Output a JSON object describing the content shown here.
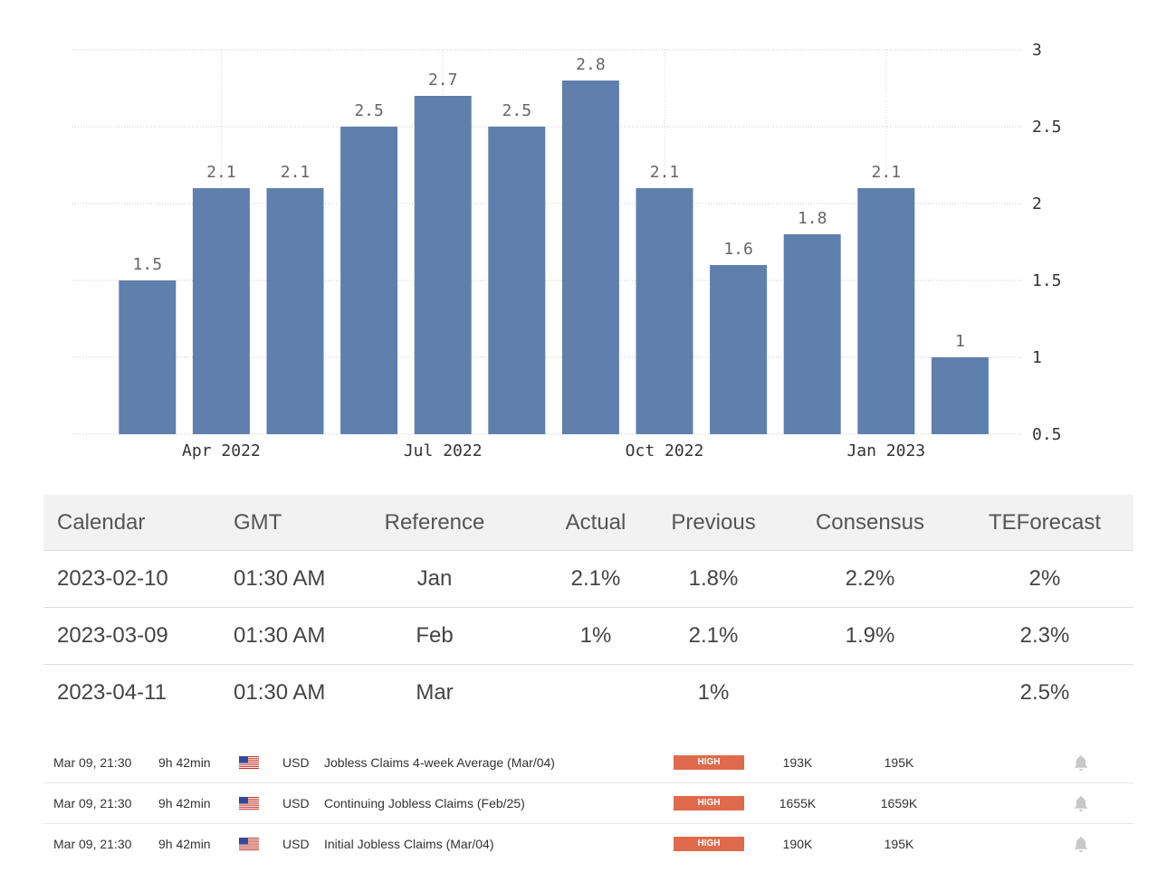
{
  "chart_data": {
    "type": "bar",
    "bars": [
      {
        "label": "1.5",
        "value": 1.5
      },
      {
        "label": "2.1",
        "value": 2.1
      },
      {
        "label": "2.1",
        "value": 2.1
      },
      {
        "label": "2.5",
        "value": 2.5
      },
      {
        "label": "2.7",
        "value": 2.7
      },
      {
        "label": "2.5",
        "value": 2.5
      },
      {
        "label": "2.8",
        "value": 2.8
      },
      {
        "label": "2.1",
        "value": 2.1
      },
      {
        "label": "1.6",
        "value": 1.6
      },
      {
        "label": "1.8",
        "value": 1.8
      },
      {
        "label": "2.1",
        "value": 2.1
      },
      {
        "label": "1",
        "value": 1.0
      }
    ],
    "x_tick_labels": [
      {
        "label": "Apr 2022",
        "bar_index": 1
      },
      {
        "label": "Jul 2022",
        "bar_index": 4
      },
      {
        "label": "Oct 2022",
        "bar_index": 7
      },
      {
        "label": "Jan 2023",
        "bar_index": 10
      }
    ],
    "y_ticks": [
      "0.5",
      "1",
      "1.5",
      "2",
      "2.5",
      "3"
    ],
    "ylim": [
      0.5,
      3
    ],
    "y_axis_side": "right",
    "grid": "horizontal dotted",
    "bar_color": "#5f7fad",
    "title": "",
    "xlabel": "",
    "ylabel": ""
  },
  "calendar": {
    "headers": {
      "calendar": "Calendar",
      "gmt": "GMT",
      "reference": "Reference",
      "actual": "Actual",
      "previous": "Previous",
      "consensus": "Consensus",
      "teforecast": "TEForecast"
    },
    "rows": [
      {
        "date": "2023-02-10",
        "gmt": "01:30 AM",
        "reference": "Jan",
        "actual": "2.1%",
        "previous": "1.8%",
        "consensus": "2.2%",
        "teforecast": "2%"
      },
      {
        "date": "2023-03-09",
        "gmt": "01:30 AM",
        "reference": "Feb",
        "actual": "1%",
        "previous": "2.1%",
        "consensus": "1.9%",
        "teforecast": "2.3%"
      },
      {
        "date": "2023-04-11",
        "gmt": "01:30 AM",
        "reference": "Mar",
        "actual": "",
        "previous": "1%",
        "consensus": "",
        "teforecast": "2.5%"
      }
    ]
  },
  "events": [
    {
      "datetime": "Mar 09, 21:30",
      "countdown": "9h 42min",
      "flag_icon": "us-flag-icon",
      "currency": "USD",
      "title": "Jobless Claims 4-week Average (Mar/04)",
      "importance": "HIGH",
      "value_a": "193K",
      "value_b": "195K",
      "bell_icon": "bell-icon"
    },
    {
      "datetime": "Mar 09, 21:30",
      "countdown": "9h 42min",
      "flag_icon": "us-flag-icon",
      "currency": "USD",
      "title": "Continuing Jobless Claims (Feb/25)",
      "importance": "HIGH",
      "value_a": "1655K",
      "value_b": "1659K",
      "bell_icon": "bell-icon"
    },
    {
      "datetime": "Mar 09, 21:30",
      "countdown": "9h 42min",
      "flag_icon": "us-flag-icon",
      "currency": "USD",
      "title": "Initial Jobless Claims (Mar/04)",
      "importance": "HIGH",
      "value_a": "190K",
      "value_b": "195K",
      "bell_icon": "bell-icon"
    }
  ],
  "colors": {
    "bar": "#5f7fad",
    "high_badge": "#e06a4c",
    "header_bg": "#f2f2f2",
    "bell": "#c8c8c8"
  }
}
